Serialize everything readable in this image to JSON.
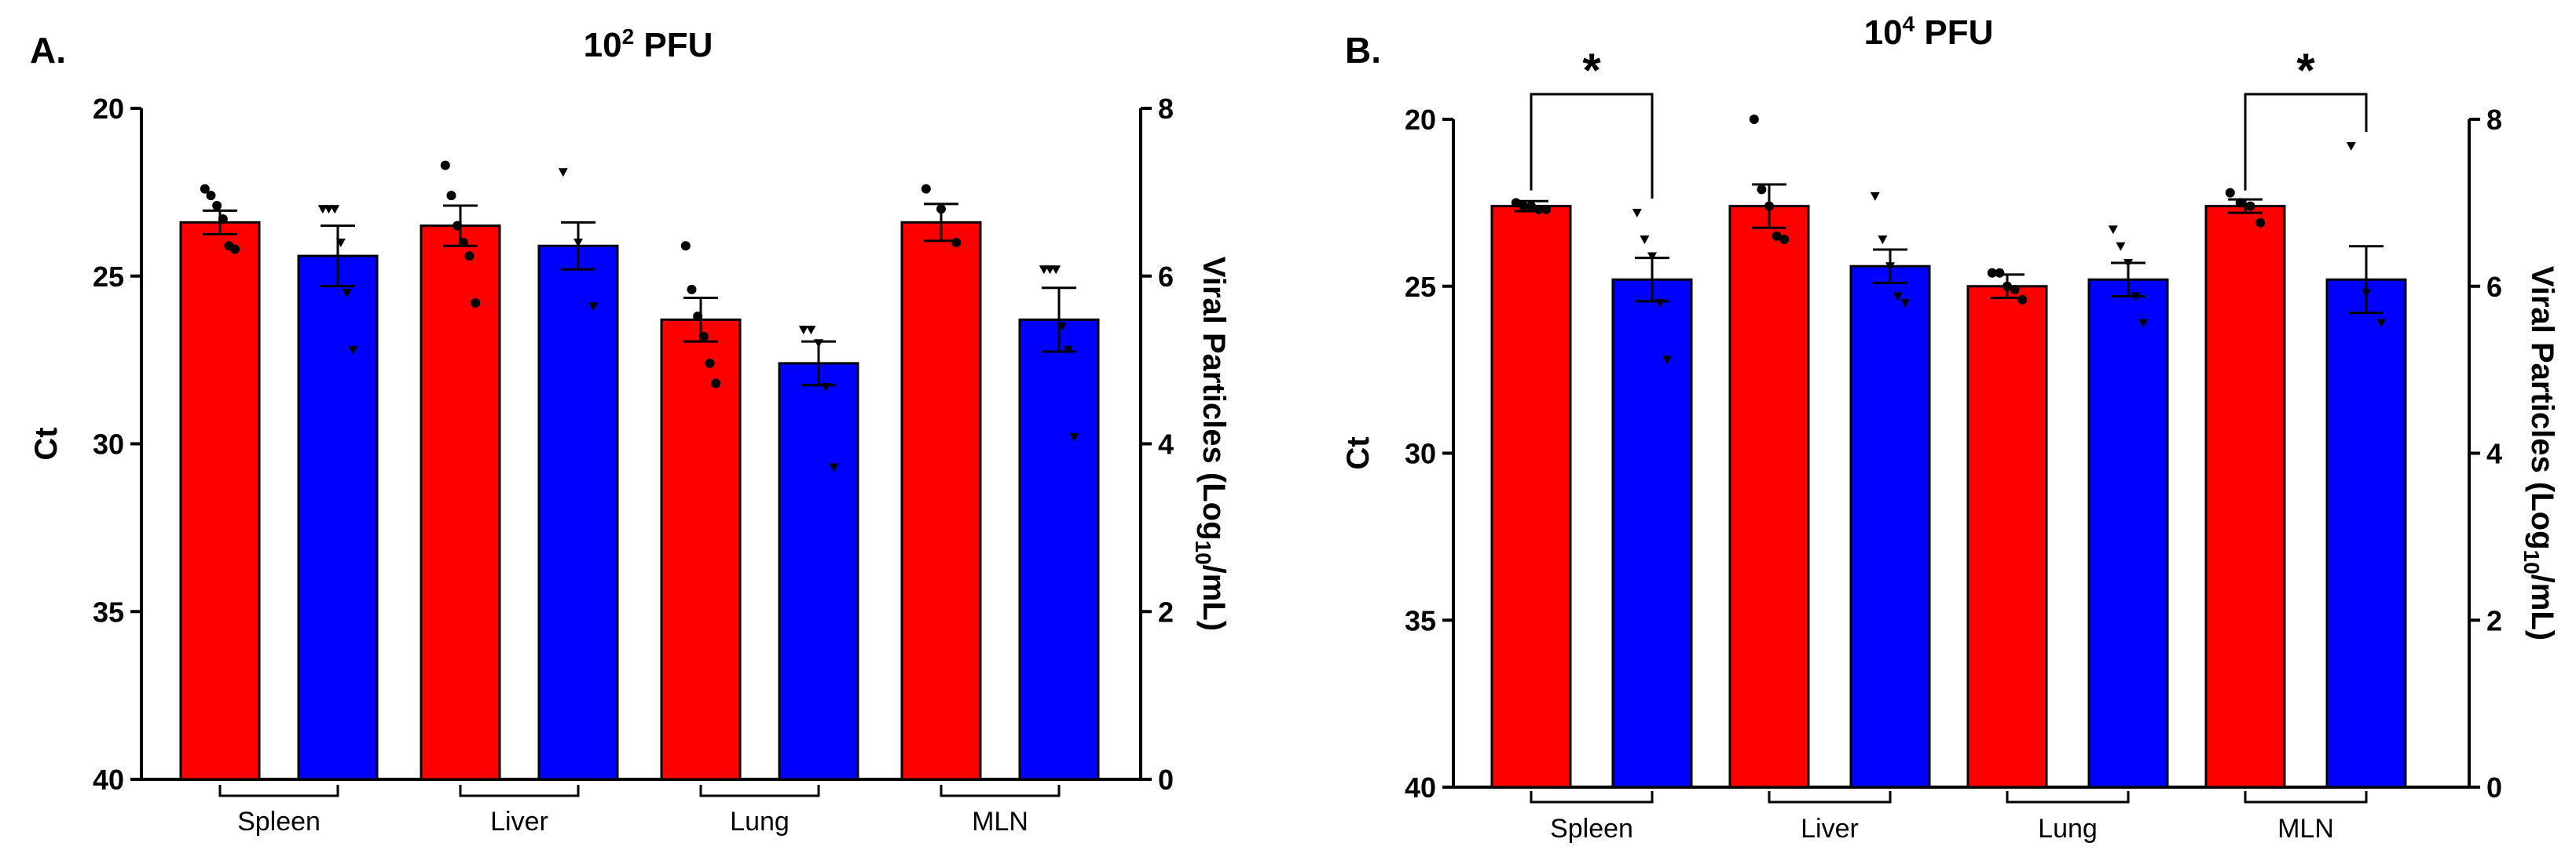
{
  "chart_data": [
    {
      "panel": "A.",
      "type": "bar",
      "title": "10",
      "title_sup": "2",
      "title_suffix": "PFU",
      "ylabel_left": "Ct",
      "ylabel_right": "Viral Particles (Log",
      "ylabel_right_sub": "10",
      "ylabel_right_end": "/mL)",
      "ylim_left": [
        20,
        40
      ],
      "ylim_right": [
        0,
        8
      ],
      "left_ticks": [
        20,
        25,
        30,
        35,
        40
      ],
      "right_ticks": [
        8,
        6,
        4,
        2,
        0
      ],
      "categories": [
        "Spleen",
        "Liver",
        "Lung",
        "MLN"
      ],
      "series": [
        {
          "name": "red",
          "color": "#ff0000",
          "marker": "circle",
          "values": [
            23.4,
            23.5,
            26.3,
            23.4
          ],
          "sem": [
            0.35,
            0.6,
            0.65,
            0.55
          ],
          "points": [
            [
              22.4,
              22.6,
              22.9,
              23.3,
              24.1,
              24.2
            ],
            [
              21.7,
              22.6,
              23.5,
              24.0,
              24.4,
              25.8
            ],
            [
              24.1,
              25.4,
              26.2,
              26.8,
              27.6,
              28.2
            ],
            [
              22.4,
              23.0,
              24.0
            ]
          ]
        },
        {
          "name": "blue",
          "color": "#0000ff",
          "marker": "triangle",
          "values": [
            24.4,
            24.1,
            27.6,
            26.3
          ],
          "sem": [
            0.9,
            0.7,
            0.65,
            0.95
          ],
          "points": [
            [
              23.0,
              23.0,
              23.0,
              24.0,
              25.5,
              27.2
            ],
            [
              21.9,
              24.0,
              25.9
            ],
            [
              26.6,
              26.6,
              27.0,
              28.3,
              30.7
            ],
            [
              24.8,
              24.8,
              24.8,
              26.5,
              27.2,
              29.8
            ]
          ]
        }
      ],
      "significance": []
    },
    {
      "panel": "B.",
      "type": "bar",
      "title": "10",
      "title_sup": "4",
      "title_suffix": "PFU",
      "ylabel_left": "Ct",
      "ylabel_right": "Viral Particles (Log",
      "ylabel_right_sub": "10",
      "ylabel_right_end": "/mL)",
      "ylim_left": [
        20,
        40
      ],
      "ylim_right": [
        0,
        8
      ],
      "left_ticks": [
        20,
        25,
        30,
        35,
        40
      ],
      "right_ticks": [
        8,
        6,
        4,
        2,
        0
      ],
      "categories": [
        "Spleen",
        "Liver",
        "Lung",
        "MLN"
      ],
      "series": [
        {
          "name": "red",
          "color": "#ff0000",
          "marker": "circle",
          "values": [
            22.6,
            22.6,
            25.0,
            22.6
          ],
          "sem": [
            0.15,
            0.65,
            0.35,
            0.2
          ],
          "points": [
            [
              22.5,
              22.6,
              22.6,
              22.7,
              22.7
            ],
            [
              20.0,
              22.1,
              22.6,
              23.5,
              23.6
            ],
            [
              24.6,
              24.6,
              25.0,
              25.1,
              25.4
            ],
            [
              22.2,
              22.5,
              22.6,
              23.1
            ]
          ]
        },
        {
          "name": "blue",
          "color": "#0000ff",
          "marker": "triangle",
          "values": [
            24.8,
            24.4,
            24.8,
            24.8
          ],
          "sem": [
            0.65,
            0.5,
            0.5,
            1.0
          ],
          "points": [
            [
              22.8,
              23.6,
              24.1,
              25.5,
              27.2
            ],
            [
              22.3,
              23.6,
              24.4,
              25.3,
              25.5
            ],
            [
              23.3,
              23.8,
              24.3,
              25.3,
              26.1
            ],
            [
              20.8,
              25.2,
              26.1
            ]
          ]
        }
      ],
      "significance": [
        {
          "category": "Spleen",
          "label": "*"
        },
        {
          "category": "MLN",
          "label": "*"
        }
      ]
    }
  ]
}
